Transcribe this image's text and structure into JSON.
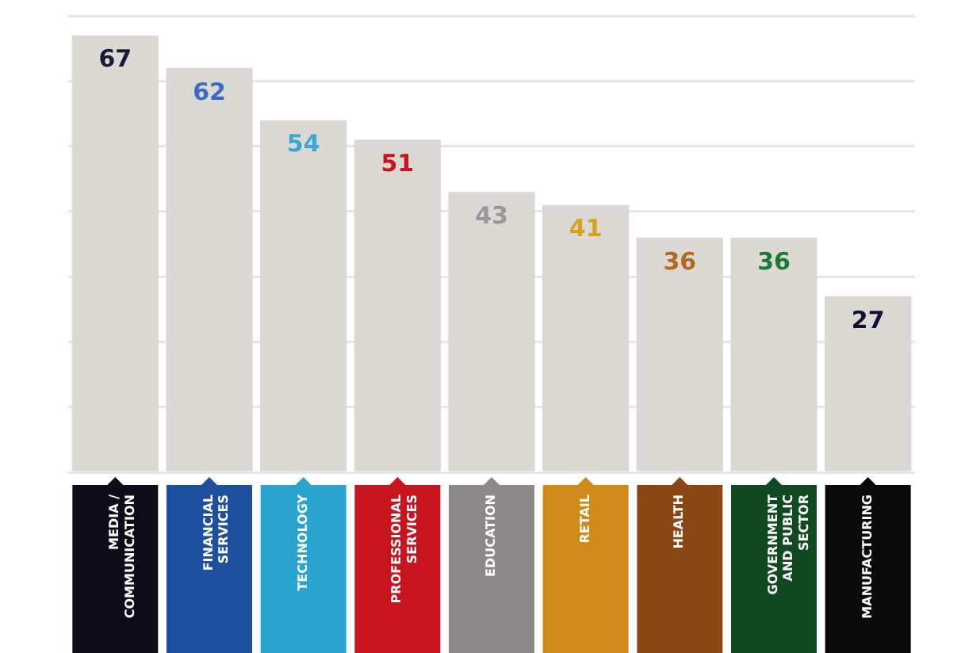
{
  "chart_data": {
    "type": "bar",
    "categories": [
      "MEDIA / COMMUNICATION",
      "FINANCIAL SERVICES",
      "TECHNOLOGY",
      "PROFESSIONAL SERVICES",
      "EDUCATION",
      "RETAIL",
      "HEALTH",
      "GOVERNMENT AND PUBLIC SECTOR",
      "MANUFACTURING"
    ],
    "values": [
      67,
      62,
      54,
      51,
      43,
      41,
      36,
      36,
      27
    ],
    "color": "#dcd8d4",
    "ylim": [
      0,
      70
    ],
    "yticks": [
      0,
      10,
      20,
      30,
      40,
      50,
      60,
      70
    ],
    "grid": "y",
    "tick_labels": "x",
    "data_labels": true
  }
}
